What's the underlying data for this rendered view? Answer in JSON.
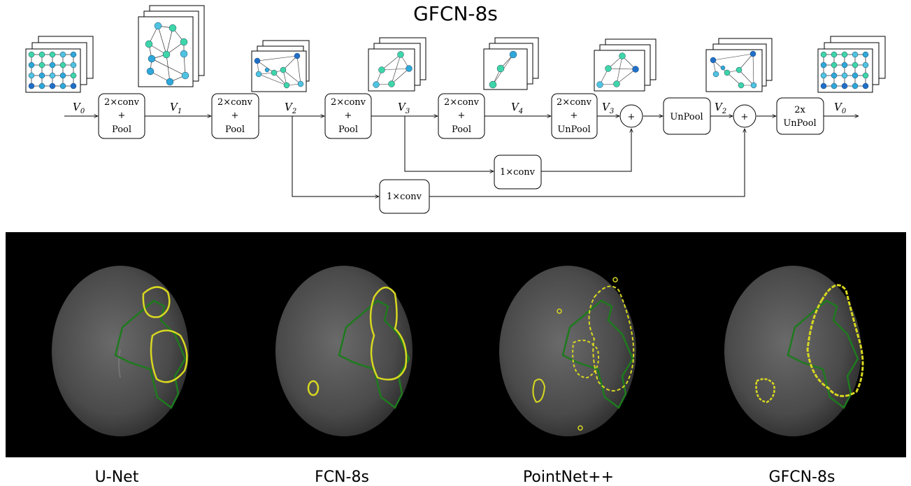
{
  "title": "GFCN-8s",
  "pipeline": {
    "v_labels": [
      {
        "base": "V",
        "sub": "0"
      },
      {
        "base": "V",
        "sub": "1"
      },
      {
        "base": "V",
        "sub": "2"
      },
      {
        "base": "V",
        "sub": "3"
      },
      {
        "base": "V",
        "sub": "4"
      },
      {
        "base": "V",
        "sub": "3"
      },
      {
        "base": "V",
        "sub": "2"
      },
      {
        "base": "V",
        "sub": "0"
      }
    ],
    "blocks": [
      {
        "lines": [
          "2×conv",
          "+",
          "Pool"
        ]
      },
      {
        "lines": [
          "2×conv",
          "+",
          "Pool"
        ]
      },
      {
        "lines": [
          "2×conv",
          "+",
          "Pool"
        ]
      },
      {
        "lines": [
          "2×conv",
          "+",
          "Pool"
        ]
      },
      {
        "lines": [
          "2×conv",
          "+",
          "UnPool"
        ]
      },
      {
        "lines": [
          "UnPool"
        ]
      },
      {
        "lines": [
          "2x",
          "UnPool"
        ]
      }
    ],
    "skip_blocks": [
      {
        "label": "1×conv"
      },
      {
        "label": "1×conv"
      }
    ],
    "sum_symbol": "+"
  },
  "results": {
    "captions": [
      "U-Net",
      "FCN-8s",
      "PointNet++",
      "GFCN-8s"
    ],
    "contour_colors": {
      "ground_truth": "#1e7a1e",
      "prediction": "#d8d820"
    }
  }
}
